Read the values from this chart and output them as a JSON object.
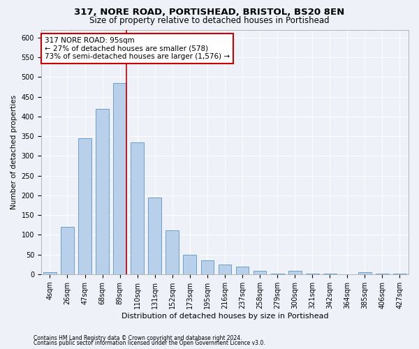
{
  "title1": "317, NORE ROAD, PORTISHEAD, BRISTOL, BS20 8EN",
  "title2": "Size of property relative to detached houses in Portishead",
  "xlabel": "Distribution of detached houses by size in Portishead",
  "ylabel": "Number of detached properties",
  "categories": [
    "4sqm",
    "26sqm",
    "47sqm",
    "68sqm",
    "89sqm",
    "110sqm",
    "131sqm",
    "152sqm",
    "173sqm",
    "195sqm",
    "216sqm",
    "237sqm",
    "258sqm",
    "279sqm",
    "300sqm",
    "321sqm",
    "342sqm",
    "364sqm",
    "385sqm",
    "406sqm",
    "427sqm"
  ],
  "values": [
    5,
    120,
    345,
    420,
    485,
    335,
    195,
    112,
    50,
    35,
    25,
    20,
    8,
    2,
    8,
    1,
    1,
    0,
    5,
    1,
    1
  ],
  "bar_color": "#b8d0ea",
  "bar_edge_color": "#6a9fcc",
  "vline_x_idx": 4,
  "vline_color": "#cc0000",
  "annotation_line1": "317 NORE ROAD: 95sqm",
  "annotation_line2": "← 27% of detached houses are smaller (578)",
  "annotation_line3": "73% of semi-detached houses are larger (1,576) →",
  "annotation_box_color": "#ffffff",
  "annotation_box_edge": "#cc0000",
  "ylim": [
    0,
    620
  ],
  "yticks": [
    0,
    50,
    100,
    150,
    200,
    250,
    300,
    350,
    400,
    450,
    500,
    550,
    600
  ],
  "footer1": "Contains HM Land Registry data © Crown copyright and database right 2024.",
  "footer2": "Contains public sector information licensed under the Open Government Licence v3.0.",
  "background_color": "#eef2f8",
  "grid_color": "#ffffff",
  "title1_fontsize": 9.5,
  "title2_fontsize": 8.5,
  "xlabel_fontsize": 8,
  "ylabel_fontsize": 7.5,
  "tick_fontsize": 7,
  "annot_fontsize": 7.5,
  "footer_fontsize": 5.5
}
